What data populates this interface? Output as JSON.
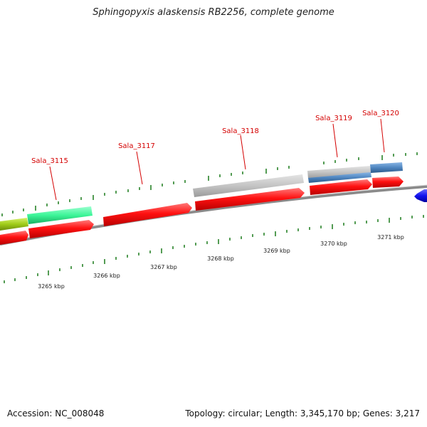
{
  "title": "Sphingopyxis alaskensis RB2256, complete genome",
  "footer": {
    "accession": "Accession: NC_008048",
    "summary": "Topology: circular; Length: 3,345,170 bp; Genes: 3,217"
  },
  "gene_labels": [
    "Sala_3115",
    "Sala_3117",
    "Sala_3118",
    "Sala_3119",
    "Sala_3120"
  ],
  "kbp_labels": [
    "3265 kbp",
    "3266 kbp",
    "3267 kbp",
    "3268 kbp",
    "3269 kbp",
    "3270 kbp",
    "3271 kbp"
  ],
  "colors": {
    "red_gene": "#ff1111",
    "gray_gene": "#c8c8c8",
    "green_gene": "#44ff9a",
    "olive_gene": "#a3d11a",
    "blue_gene": "#4f86c0",
    "deep_blue_gene": "#1010ee",
    "tick_green": "#1a7a1a",
    "label_red": "#d40000"
  }
}
